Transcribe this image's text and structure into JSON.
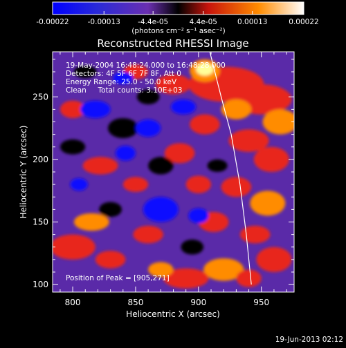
{
  "colorbar": {
    "tick_labels": [
      "-0.00022",
      "-0.00013",
      "-4.4e-05",
      "4.4e-05",
      "0.00013",
      "0.00022"
    ],
    "tick_values": [
      -0.00022,
      -0.00013,
      -4.4e-05,
      4.4e-05,
      0.00013,
      0.00022
    ],
    "range": [
      -0.00022,
      0.00022
    ],
    "unit_label": "(photons cm⁻² s⁻¹ asec⁻²)"
  },
  "chart_data": {
    "type": "heatmap",
    "title": "Reconstructed RHESSI Image",
    "xlabel": "Heliocentric X (arcsec)",
    "ylabel": "Heliocentric Y (arcsec)",
    "xlim": [
      784,
      976
    ],
    "ylim": [
      94,
      286
    ],
    "x_ticks": [
      "800",
      "850",
      "900",
      "950"
    ],
    "x_tick_values": [
      800,
      850,
      900,
      950
    ],
    "y_ticks": [
      "100",
      "150",
      "200",
      "250"
    ],
    "y_tick_values": [
      100,
      150,
      200,
      250
    ],
    "annotations": [
      "19-May-2004 16:48:24.000 to 16:48:28.000",
      "Detectors: 4F 5F 6F 7F 8F, Att 0",
      "Energy Range: 25.0 - 50.0 keV",
      "Clean     Total counts: 3.10E+03"
    ],
    "peak_label": "Position of Peak = [905,271]",
    "peak": [
      905,
      271
    ],
    "limb_curve": [
      [
        909,
        286
      ],
      [
        918,
        250
      ],
      [
        926,
        220
      ],
      [
        933,
        180
      ],
      [
        938,
        140
      ],
      [
        942,
        100
      ]
    ],
    "colors": {
      "deep_negative": "#1010ff",
      "negative": "#5a2aa8",
      "zero": "#000000",
      "positive": "#e8281e",
      "strong_positive": "#ff8c00",
      "peak": "#ffff9a"
    }
  },
  "footer": {
    "timestamp": "19-Jun-2013 02:12"
  }
}
